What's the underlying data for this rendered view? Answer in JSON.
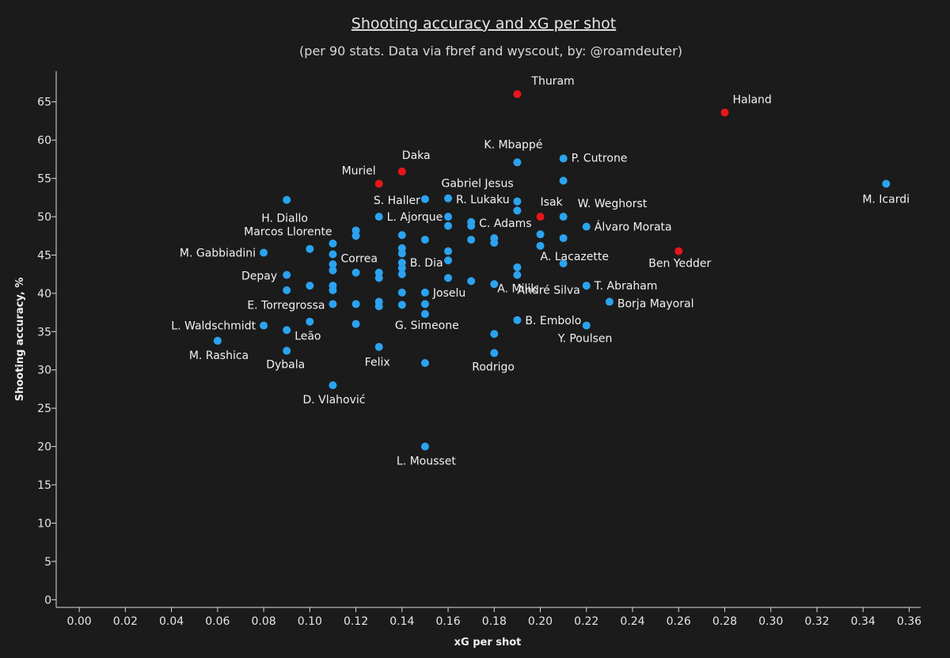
{
  "chart_data": {
    "type": "scatter",
    "title": "Shooting accuracy and xG per shot",
    "subtitle": "(per 90 stats. Data via fbref and wyscout, by: @roamdeuter)",
    "xlabel": "xG per shot",
    "ylabel": "Shooting accuracy, %",
    "xlim": [
      -0.01,
      0.365
    ],
    "ylim": [
      -1,
      69
    ],
    "x_ticks": [
      "0.00",
      "0.02",
      "0.04",
      "0.06",
      "0.08",
      "0.10",
      "0.12",
      "0.14",
      "0.16",
      "0.18",
      "0.20",
      "0.22",
      "0.24",
      "0.26",
      "0.28",
      "0.30",
      "0.32",
      "0.34",
      "0.36"
    ],
    "y_ticks": [
      "0",
      "5",
      "10",
      "15",
      "20",
      "25",
      "30",
      "35",
      "40",
      "45",
      "50",
      "55",
      "60",
      "65"
    ],
    "grid": false,
    "colors": {
      "highlight": "#e8161b",
      "default": "#2ba3f0",
      "background": "#1b1b1b",
      "text": "#e6e6e6"
    },
    "points": [
      {
        "x": 0.19,
        "y": 66.0,
        "label": "Thuram",
        "highlight": true
      },
      {
        "x": 0.28,
        "y": 63.6,
        "label": "Haland",
        "highlight": true
      },
      {
        "x": 0.13,
        "y": 54.3,
        "label": "Muriel",
        "highlight": true
      },
      {
        "x": 0.14,
        "y": 55.9,
        "label": "Daka",
        "highlight": true
      },
      {
        "x": 0.2,
        "y": 50.0,
        "label": "Isak",
        "highlight": true
      },
      {
        "x": 0.26,
        "y": 45.5,
        "label": "Ben Yedder",
        "highlight": true
      },
      {
        "x": 0.19,
        "y": 57.1,
        "label": "K. Mbappé"
      },
      {
        "x": 0.21,
        "y": 57.6,
        "label": "P. Cutrone"
      },
      {
        "x": 0.21,
        "y": 54.7,
        "label": "Gabriel Jesus"
      },
      {
        "x": 0.35,
        "y": 54.3,
        "label": "M. Icardi"
      },
      {
        "x": 0.09,
        "y": 52.2,
        "label": "H. Diallo"
      },
      {
        "x": 0.15,
        "y": 52.3,
        "label": "S. Haller"
      },
      {
        "x": 0.16,
        "y": 52.4,
        "label": "R. Lukaku"
      },
      {
        "x": 0.19,
        "y": 52.0,
        "label": ""
      },
      {
        "x": 0.19,
        "y": 50.8,
        "label": ""
      },
      {
        "x": 0.21,
        "y": 50.0,
        "label": "W. Weghorst"
      },
      {
        "x": 0.13,
        "y": 50.0,
        "label": "L. Ajorque"
      },
      {
        "x": 0.16,
        "y": 50.0,
        "label": ""
      },
      {
        "x": 0.16,
        "y": 48.8,
        "label": ""
      },
      {
        "x": 0.17,
        "y": 49.3,
        "label": "C. Adams"
      },
      {
        "x": 0.17,
        "y": 48.8,
        "label": ""
      },
      {
        "x": 0.22,
        "y": 48.7,
        "label": "Álvaro Morata"
      },
      {
        "x": 0.12,
        "y": 48.2,
        "label": "Marcos Llorente"
      },
      {
        "x": 0.12,
        "y": 47.5,
        "label": ""
      },
      {
        "x": 0.14,
        "y": 47.6,
        "label": ""
      },
      {
        "x": 0.15,
        "y": 47.0,
        "label": ""
      },
      {
        "x": 0.17,
        "y": 47.0,
        "label": ""
      },
      {
        "x": 0.18,
        "y": 47.2,
        "label": ""
      },
      {
        "x": 0.18,
        "y": 46.6,
        "label": ""
      },
      {
        "x": 0.2,
        "y": 47.7,
        "label": ""
      },
      {
        "x": 0.21,
        "y": 47.2,
        "label": ""
      },
      {
        "x": 0.2,
        "y": 46.2,
        "label": "A. Lacazette"
      },
      {
        "x": 0.11,
        "y": 46.5,
        "label": ""
      },
      {
        "x": 0.1,
        "y": 45.8,
        "label": ""
      },
      {
        "x": 0.08,
        "y": 45.3,
        "label": "M. Gabbiadini"
      },
      {
        "x": 0.11,
        "y": 45.1,
        "label": "Correa"
      },
      {
        "x": 0.14,
        "y": 45.9,
        "label": ""
      },
      {
        "x": 0.14,
        "y": 45.2,
        "label": ""
      },
      {
        "x": 0.16,
        "y": 45.5,
        "label": ""
      },
      {
        "x": 0.16,
        "y": 44.3,
        "label": ""
      },
      {
        "x": 0.14,
        "y": 44.0,
        "label": "B. Dia"
      },
      {
        "x": 0.14,
        "y": 43.3,
        "label": ""
      },
      {
        "x": 0.11,
        "y": 43.8,
        "label": ""
      },
      {
        "x": 0.11,
        "y": 43.0,
        "label": ""
      },
      {
        "x": 0.21,
        "y": 43.9,
        "label": ""
      },
      {
        "x": 0.19,
        "y": 43.4,
        "label": ""
      },
      {
        "x": 0.19,
        "y": 42.4,
        "label": "André Silva"
      },
      {
        "x": 0.12,
        "y": 42.7,
        "label": ""
      },
      {
        "x": 0.13,
        "y": 42.7,
        "label": ""
      },
      {
        "x": 0.13,
        "y": 42.0,
        "label": ""
      },
      {
        "x": 0.14,
        "y": 42.5,
        "label": ""
      },
      {
        "x": 0.09,
        "y": 42.4,
        "label": "Depay"
      },
      {
        "x": 0.16,
        "y": 42.0,
        "label": ""
      },
      {
        "x": 0.17,
        "y": 41.6,
        "label": ""
      },
      {
        "x": 0.18,
        "y": 41.2,
        "label": "A. Milik"
      },
      {
        "x": 0.1,
        "y": 41.0,
        "label": ""
      },
      {
        "x": 0.11,
        "y": 41.0,
        "label": ""
      },
      {
        "x": 0.11,
        "y": 40.4,
        "label": ""
      },
      {
        "x": 0.09,
        "y": 40.4,
        "label": ""
      },
      {
        "x": 0.14,
        "y": 40.1,
        "label": ""
      },
      {
        "x": 0.15,
        "y": 40.1,
        "label": "Joselu"
      },
      {
        "x": 0.22,
        "y": 41.0,
        "label": "T. Abraham"
      },
      {
        "x": 0.23,
        "y": 38.9,
        "label": "Borja Mayoral"
      },
      {
        "x": 0.11,
        "y": 38.6,
        "label": "E. Torregrossa"
      },
      {
        "x": 0.12,
        "y": 38.6,
        "label": ""
      },
      {
        "x": 0.13,
        "y": 38.9,
        "label": ""
      },
      {
        "x": 0.13,
        "y": 38.3,
        "label": ""
      },
      {
        "x": 0.14,
        "y": 38.5,
        "label": ""
      },
      {
        "x": 0.15,
        "y": 38.6,
        "label": ""
      },
      {
        "x": 0.15,
        "y": 37.3,
        "label": "G. Simeone"
      },
      {
        "x": 0.19,
        "y": 36.5,
        "label": "B. Embolo"
      },
      {
        "x": 0.22,
        "y": 35.8,
        "label": "Y. Poulsen"
      },
      {
        "x": 0.08,
        "y": 35.8,
        "label": "L. Waldschmidt"
      },
      {
        "x": 0.1,
        "y": 36.3,
        "label": ""
      },
      {
        "x": 0.12,
        "y": 36.0,
        "label": ""
      },
      {
        "x": 0.09,
        "y": 35.2,
        "label": "Leão"
      },
      {
        "x": 0.18,
        "y": 34.7,
        "label": ""
      },
      {
        "x": 0.06,
        "y": 33.8,
        "label": "M. Rashica"
      },
      {
        "x": 0.13,
        "y": 33.0,
        "label": "Felix"
      },
      {
        "x": 0.09,
        "y": 32.5,
        "label": "Dybala"
      },
      {
        "x": 0.18,
        "y": 32.2,
        "label": "Rodrigo"
      },
      {
        "x": 0.15,
        "y": 30.9,
        "label": ""
      },
      {
        "x": 0.11,
        "y": 28.0,
        "label": "D. Vlahović"
      },
      {
        "x": 0.15,
        "y": 20.0,
        "label": "L. Mousset"
      }
    ]
  }
}
